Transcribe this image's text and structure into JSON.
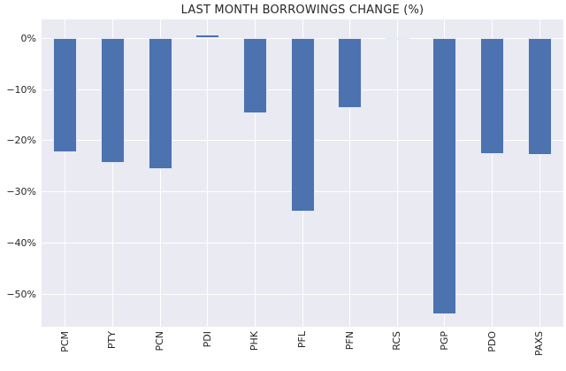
{
  "chart_data": {
    "type": "bar",
    "title": "LAST MONTH BORROWINGS CHANGE (%)",
    "categories": [
      "PCM",
      "PTY",
      "PCN",
      "PDI",
      "PHK",
      "PFL",
      "PFN",
      "RCS",
      "PGP",
      "PDO",
      "PAXS"
    ],
    "values": [
      -22.3,
      -24.3,
      -25.6,
      0.7,
      -14.7,
      -33.8,
      -13.6,
      -0.3,
      -54.0,
      -22.6,
      -22.8
    ],
    "xlabel": "",
    "ylabel": "",
    "ylim": [
      -56.4,
      3.7
    ],
    "yticks": [
      0,
      -10,
      -20,
      -30,
      -40,
      -50
    ],
    "ytick_labels": [
      "0%",
      "−10%",
      "−20%",
      "−30%",
      "−40%",
      "−50%"
    ],
    "grid": true,
    "legend": null,
    "colors": {
      "bar": "#4C72B0",
      "plot_background": "#EAEAF2",
      "gridline": "#FFFFFF",
      "text": "#262626",
      "figure_background": "#FFFFFF"
    }
  }
}
